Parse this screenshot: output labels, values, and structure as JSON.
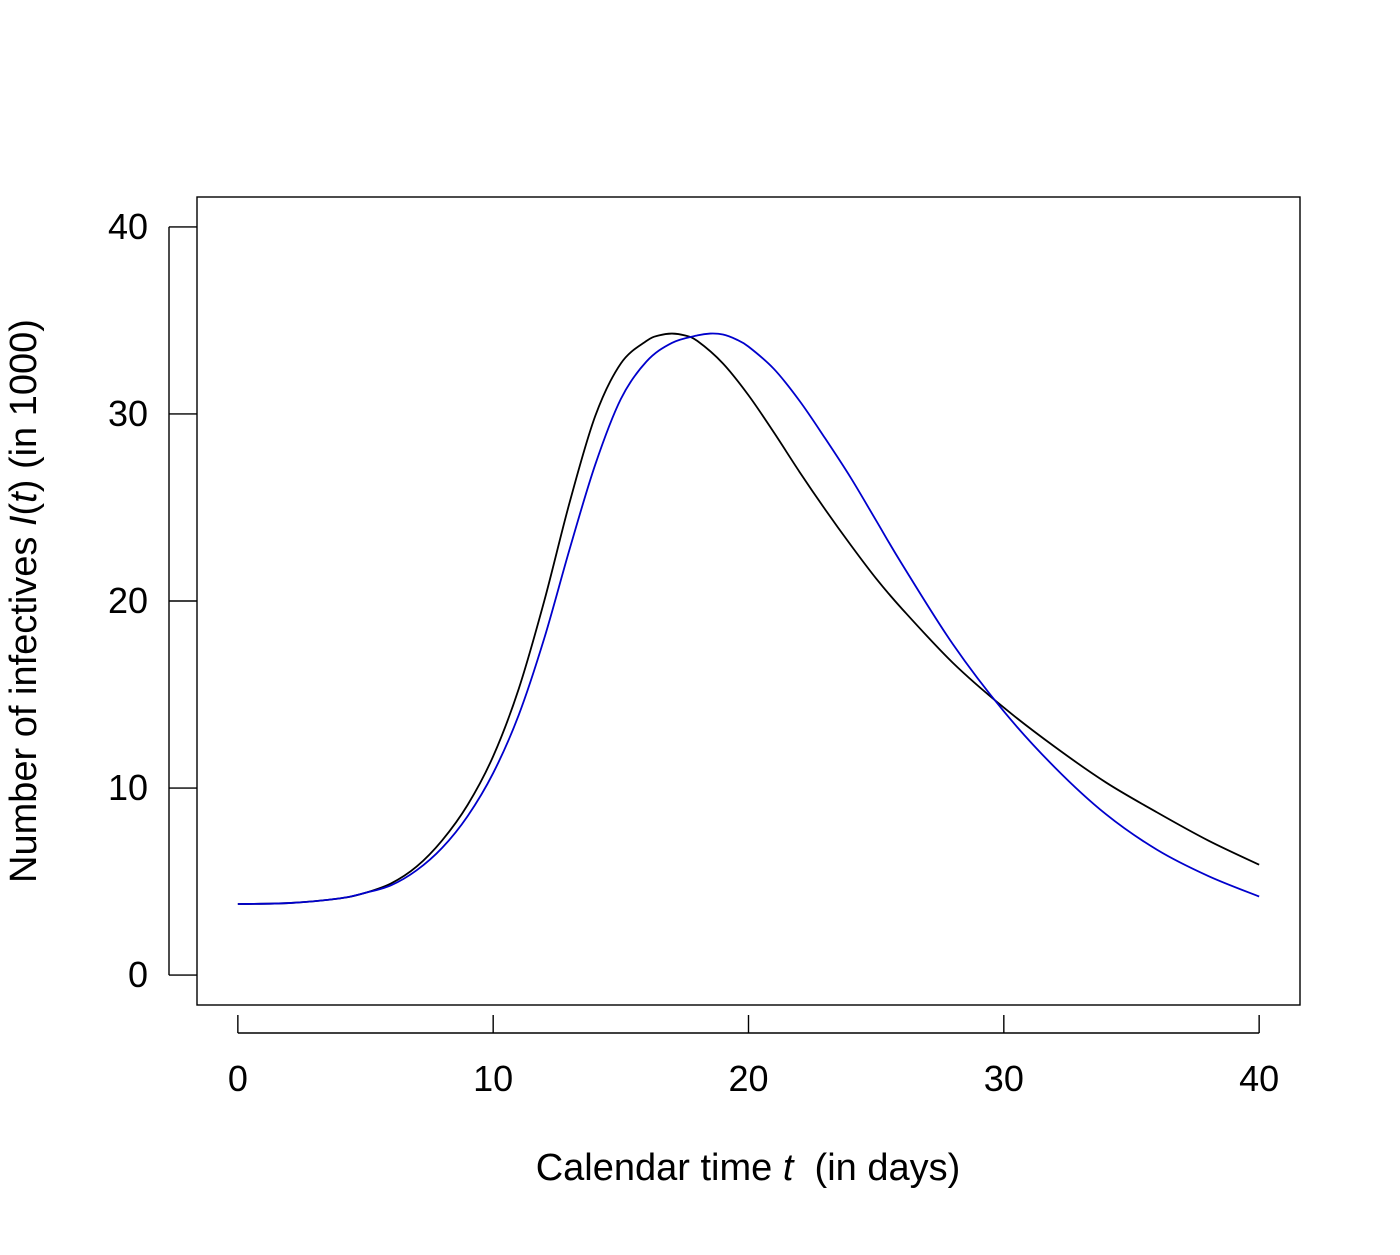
{
  "chart_data": {
    "type": "line",
    "title": "",
    "xlabel": {
      "prefix": "Calendar time ",
      "var": "t",
      "suffix": "  (in days)"
    },
    "ylabel": {
      "prefix": "Number of infectives ",
      "var": "I",
      "paren_open": "(",
      "var2": "t",
      "paren_close": ")",
      "suffix": " (in 1000)"
    },
    "xlim": [
      -1.6,
      41.6
    ],
    "ylim": [
      -1.6,
      41.6
    ],
    "x_ticks": [
      0,
      10,
      20,
      30,
      40
    ],
    "x_tick_labels": [
      "0",
      "10",
      "20",
      "30",
      "40"
    ],
    "y_ticks": [
      0,
      10,
      20,
      30,
      40
    ],
    "y_tick_labels": [
      "0",
      "10",
      "20",
      "30",
      "40"
    ],
    "grid": false,
    "legend": "none",
    "series": [
      {
        "color": "#000000",
        "x": [
          0,
          2,
          4,
          5,
          6,
          7,
          8,
          9,
          10,
          11,
          12,
          13,
          14,
          15,
          16,
          16.5,
          17,
          17.5,
          18,
          19,
          20,
          21,
          22,
          23,
          24,
          25,
          26,
          28,
          30,
          32,
          34,
          36,
          38,
          40
        ],
        "y": [
          3.8,
          3.85,
          4.1,
          4.4,
          4.9,
          5.8,
          7.2,
          9.1,
          11.7,
          15.3,
          20.0,
          25.3,
          29.9,
          32.7,
          33.9,
          34.2,
          34.3,
          34.2,
          33.9,
          32.7,
          31.0,
          29.0,
          26.9,
          24.9,
          23.0,
          21.2,
          19.6,
          16.7,
          14.3,
          12.2,
          10.3,
          8.7,
          7.2,
          5.9
        ]
      },
      {
        "color": "#0000cc",
        "x": [
          0,
          2,
          4,
          5,
          6,
          7,
          8,
          9,
          10,
          11,
          12,
          13,
          14,
          15,
          16,
          17,
          18,
          18.5,
          19,
          19.5,
          20,
          21,
          22,
          23,
          24,
          25,
          26,
          28,
          30,
          32,
          34,
          36,
          38,
          40
        ],
        "y": [
          3.8,
          3.85,
          4.1,
          4.4,
          4.8,
          5.6,
          6.8,
          8.5,
          10.8,
          13.9,
          18.0,
          22.8,
          27.3,
          30.8,
          32.8,
          33.8,
          34.2,
          34.3,
          34.25,
          34.0,
          33.6,
          32.4,
          30.7,
          28.7,
          26.6,
          24.3,
          22.0,
          17.7,
          14.1,
          11.1,
          8.6,
          6.7,
          5.3,
          4.2
        ]
      }
    ]
  }
}
